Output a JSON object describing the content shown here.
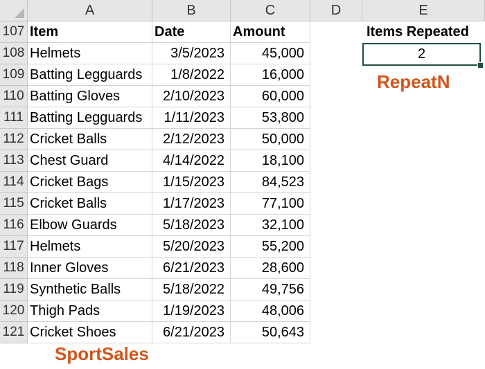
{
  "columns": [
    "A",
    "B",
    "C",
    "D",
    "E"
  ],
  "header_row": {
    "row_number": "107",
    "item": "Item",
    "date": "Date",
    "amount": "Amount",
    "items_repeated": "Items Repeated"
  },
  "rows": [
    {
      "row_number": "108",
      "item": "Helmets",
      "date": "3/5/2023",
      "amount": "45,000"
    },
    {
      "row_number": "109",
      "item": "Batting Legguards",
      "date": "1/8/2022",
      "amount": "16,000"
    },
    {
      "row_number": "110",
      "item": "Batting Gloves",
      "date": "2/10/2023",
      "amount": "60,000"
    },
    {
      "row_number": "111",
      "item": "Batting Legguards",
      "date": "1/11/2023",
      "amount": "53,800"
    },
    {
      "row_number": "112",
      "item": "Cricket Balls",
      "date": "2/12/2023",
      "amount": "50,000"
    },
    {
      "row_number": "113",
      "item": "Chest Guard",
      "date": "4/14/2022",
      "amount": "18,100"
    },
    {
      "row_number": "114",
      "item": "Cricket Bags",
      "date": "1/15/2023",
      "amount": "84,523"
    },
    {
      "row_number": "115",
      "item": "Cricket Balls",
      "date": "1/17/2023",
      "amount": "77,100"
    },
    {
      "row_number": "116",
      "item": "Elbow Guards",
      "date": "5/18/2023",
      "amount": "32,100"
    },
    {
      "row_number": "117",
      "item": "Helmets",
      "date": "5/20/2023",
      "amount": "55,200"
    },
    {
      "row_number": "118",
      "item": "Inner Gloves",
      "date": "6/21/2023",
      "amount": "28,600"
    },
    {
      "row_number": "119",
      "item": "Synthetic Balls",
      "date": "5/18/2022",
      "amount": "49,756"
    },
    {
      "row_number": "120",
      "item": "Thigh Pads",
      "date": "1/19/2023",
      "amount": "48,006"
    },
    {
      "row_number": "121",
      "item": "Cricket Shoes",
      "date": "6/21/2023",
      "amount": "50,643"
    }
  ],
  "items_repeated_value": "2",
  "captions": {
    "function_name": "RepeatN",
    "table_name": "SportSales"
  },
  "colors": {
    "caption": "#d0561c",
    "selection_border": "#1f4f3a",
    "header_background": "#e6e6e6"
  },
  "icons": {
    "select_all": "select-all-triangle-icon"
  }
}
